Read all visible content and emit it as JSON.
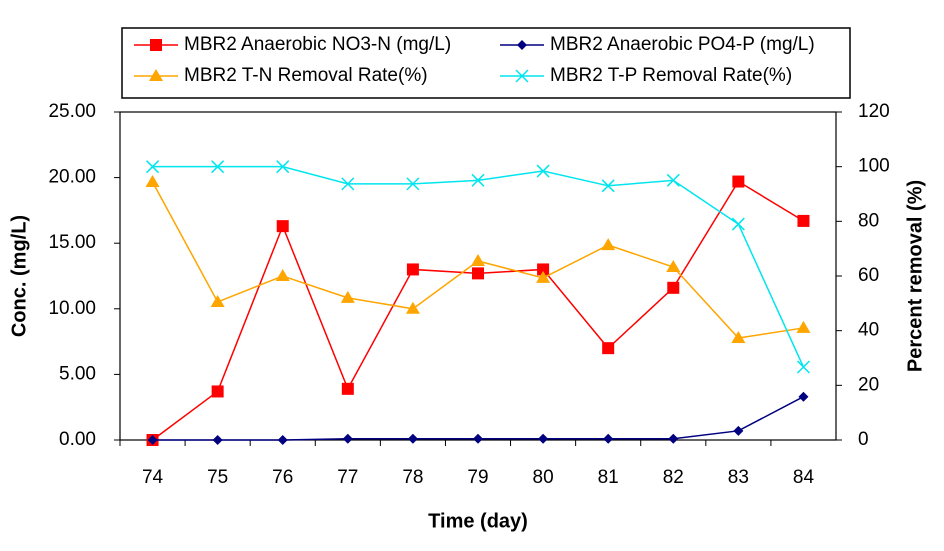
{
  "chart_data": {
    "type": "line",
    "x_label": "Time (day)",
    "y_label": "Conc. (mg/L)",
    "y2_label": "Percent removal (%)",
    "categories": [
      "74",
      "75",
      "76",
      "77",
      "78",
      "79",
      "80",
      "81",
      "82",
      "83",
      "84"
    ],
    "series": [
      {
        "name": "MBR2 Anaerobic NO3-N (mg/L)",
        "color": "#ff0000",
        "marker": "square",
        "values": [
          0,
          3.7,
          16.3,
          3.9,
          13.0,
          12.7,
          13.0,
          7.0,
          11.6,
          19.7,
          16.7
        ]
      },
      {
        "name": "MBR2 Anaerobic PO4-P (mg/L)",
        "color": "#000080",
        "marker": "diamond",
        "values": [
          0,
          0,
          0,
          0.1,
          0.1,
          0.1,
          0.1,
          0.1,
          0.1,
          0.7,
          3.3
        ]
      },
      {
        "name": "MBR2 T-N Removal Rate(%)",
        "color": "#ffa500",
        "marker": "triangle",
        "axis": "y2",
        "values": [
          94.4,
          50.5,
          60,
          52,
          48,
          65.5,
          59.3,
          71.3,
          63.3,
          37.3,
          41
        ]
      },
      {
        "name": "MBR2 T-P Removal Rate(%)",
        "color": "#00e5ee",
        "marker": "x",
        "axis": "y2",
        "values": [
          100,
          100,
          100,
          93.7,
          93.7,
          95,
          98.4,
          93,
          95,
          79,
          26.7
        ]
      }
    ],
    "ylim": [
      0,
      25
    ],
    "yticks": [
      {
        "value": 0,
        "label": "0.00"
      },
      {
        "value": 5,
        "label": "5.00"
      },
      {
        "value": 10,
        "label": "10.00"
      },
      {
        "value": 15,
        "label": "15.00"
      },
      {
        "value": 20,
        "label": "20.00"
      },
      {
        "value": 25,
        "label": "25.00"
      }
    ],
    "y2lim": [
      0,
      120
    ],
    "y2ticks": [
      0,
      20,
      40,
      60,
      80,
      100,
      120
    ],
    "grid": false
  }
}
